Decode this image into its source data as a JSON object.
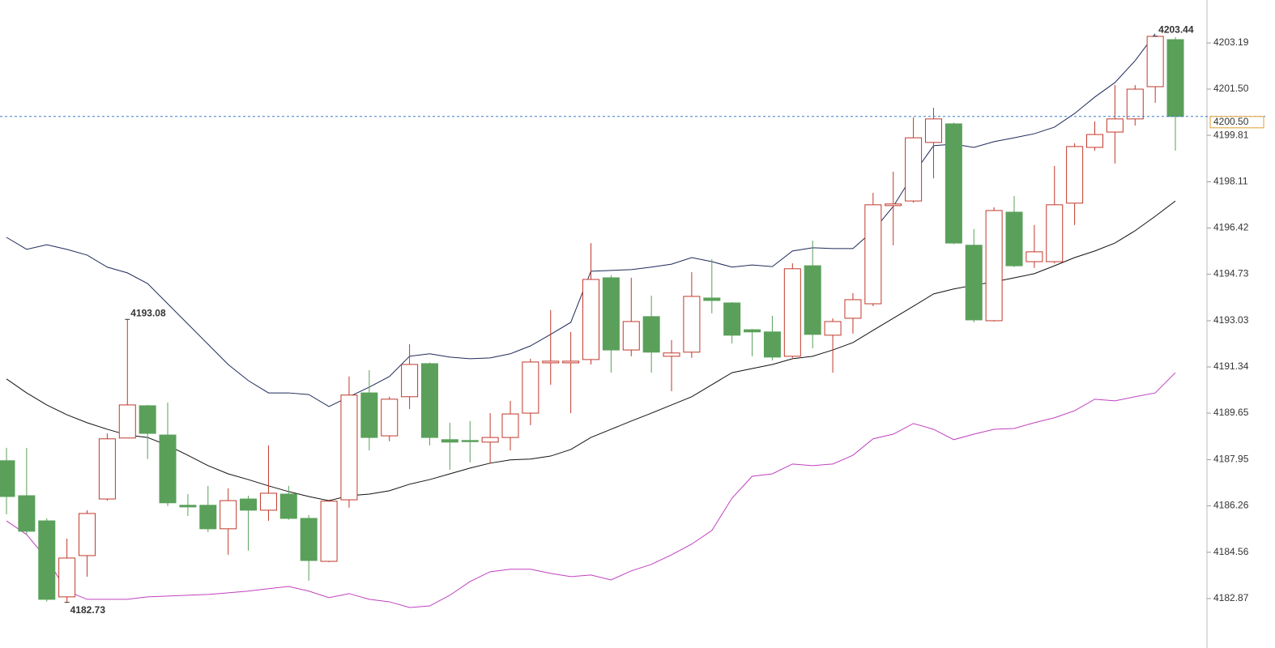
{
  "chart_data": {
    "type": "candlestick",
    "up_color": "#c0392b",
    "down_color": "#5aa05a",
    "open": [
      4187.91,
      4186.63,
      4185.71,
      4182.93,
      4184.44,
      4186.51,
      4188.74,
      4189.92,
      4188.85,
      4186.28,
      4186.28,
      4185.42,
      4186.51,
      4186.1,
      4186.69,
      4185.8,
      4184.23,
      4186.48,
      4190.39,
      4188.82,
      4190.25,
      4191.46,
      4188.68,
      4188.65,
      4188.59,
      4188.76,
      4189.65,
      4191.49,
      4191.49,
      4191.61,
      4194.6,
      4191.96,
      4193.18,
      4191.73,
      4191.88,
      4193.86,
      4193.68,
      4192.7,
      4192.62,
      4191.73,
      4195.04,
      4192.5,
      4193.12,
      4193.65,
      4197.24,
      4197.41,
      4199.55,
      4200.23,
      4195.79,
      4193.03,
      4197.0,
      4195.19,
      4195.19,
      4197.33,
      4199.37,
      4199.93,
      4200.41,
      4201.59,
      4203.31
    ],
    "high": [
      4188.38,
      4188.38,
      4185.8,
      4185.06,
      4186.1,
      4188.91,
      4193.08,
      4189.95,
      4190.04,
      4186.69,
      4186.99,
      4186.9,
      4186.63,
      4188.47,
      4186.99,
      4185.92,
      4186.48,
      4190.99,
      4191.22,
      4190.25,
      4192.17,
      4191.5,
      4189.3,
      4189.36,
      4189.65,
      4190.1,
      4191.64,
      4193.42,
      4192.62,
      4195.87,
      4194.69,
      4194.6,
      4193.95,
      4192.32,
      4194.81,
      4195.28,
      4193.71,
      4192.73,
      4193.21,
      4195.13,
      4195.96,
      4193.12,
      4194.04,
      4197.71,
      4198.48,
      4200.47,
      4200.82,
      4200.27,
      4196.38,
      4197.18,
      4197.59,
      4196.53,
      4198.69,
      4199.52,
      4200.32,
      4201.65,
      4201.65,
      4203.44,
      4203.4
    ],
    "low": [
      4185.95,
      4185.21,
      4182.76,
      4182.73,
      4183.67,
      4186.45,
      4188.74,
      4187.97,
      4186.25,
      4185.89,
      4185.3,
      4184.47,
      4184.62,
      4185.71,
      4185.75,
      4183.52,
      4184.2,
      4186.19,
      4188.29,
      4188.62,
      4189.8,
      4188.47,
      4187.58,
      4187.85,
      4187.82,
      4188.29,
      4189.21,
      4190.69,
      4189.65,
      4191.43,
      4191.13,
      4191.73,
      4191.13,
      4190.45,
      4191.67,
      4193.3,
      4192.2,
      4191.73,
      4191.58,
      4191.67,
      4192.02,
      4191.13,
      4192.56,
      4193.56,
      4195.79,
      4197.35,
      4198.24,
      4195.83,
      4192.97,
      4193.0,
      4194.99,
      4194.96,
      4195.13,
      4196.53,
      4199.25,
      4198.78,
      4200.17,
      4201.0,
      4199.25
    ],
    "close": [
      4186.6,
      4185.33,
      4182.84,
      4184.35,
      4185.98,
      4188.71,
      4189.95,
      4188.91,
      4186.37,
      4186.22,
      4185.42,
      4186.45,
      4186.1,
      4186.72,
      4185.8,
      4184.26,
      4186.43,
      4190.31,
      4188.76,
      4190.16,
      4191.43,
      4188.76,
      4188.59,
      4188.62,
      4188.76,
      4189.62,
      4191.52,
      4191.55,
      4191.55,
      4194.54,
      4191.96,
      4193.0,
      4191.88,
      4191.85,
      4193.92,
      4193.77,
      4192.5,
      4192.62,
      4191.7,
      4194.93,
      4192.53,
      4193.0,
      4193.8,
      4197.27,
      4197.3,
      4199.72,
      4200.41,
      4195.87,
      4193.06,
      4197.06,
      4195.04,
      4195.55,
      4197.27,
      4199.4,
      4199.84,
      4200.41,
      4201.5,
      4203.43,
      4200.5
    ],
    "lines": [
      {
        "color": "#1f2a5a",
        "values": [
          4196.08,
          4195.64,
          4195.81,
          4195.64,
          4195.43,
          4194.99,
          4194.78,
          4194.39,
          4193.65,
          4192.91,
          4192.17,
          4191.43,
          4190.84,
          4190.39,
          4190.39,
          4190.33,
          4189.89,
          4190.25,
          4190.6,
          4190.99,
          4191.73,
          4191.82,
          4191.7,
          4191.64,
          4191.67,
          4191.82,
          4192.11,
          4192.53,
          4192.97,
          4194.84,
          4194.87,
          4194.9,
          4194.99,
          4195.1,
          4195.34,
          4195.19,
          4194.99,
          4195.07,
          4195.01,
          4195.58,
          4195.7,
          4195.67,
          4195.67,
          4196.32,
          4197.21,
          4198.39,
          4199.43,
          4199.49,
          4199.37,
          4199.58,
          4199.72,
          4199.87,
          4200.11,
          4200.61,
          4201.21,
          4201.74,
          4202.54,
          4203.52,
          null
        ]
      },
      {
        "color": "#111111",
        "values": [
          4190.9,
          4190.39,
          4189.95,
          4189.59,
          4189.3,
          4189.06,
          4188.85,
          4188.76,
          4188.47,
          4188.11,
          4187.73,
          4187.43,
          4187.22,
          4186.99,
          4186.78,
          4186.6,
          4186.45,
          4186.63,
          4186.69,
          4186.81,
          4187.05,
          4187.22,
          4187.43,
          4187.64,
          4187.82,
          4187.94,
          4187.97,
          4188.08,
          4188.32,
          4188.76,
          4189.06,
          4189.36,
          4189.65,
          4189.95,
          4190.25,
          4190.69,
          4191.13,
          4191.28,
          4191.43,
          4191.64,
          4191.73,
          4191.96,
          4192.23,
          4192.68,
          4193.12,
          4193.56,
          4194.01,
          4194.19,
          4194.33,
          4194.45,
          4194.6,
          4194.75,
          4195.04,
          4195.34,
          4195.58,
          4195.87,
          4196.32,
          4196.85,
          4197.41
        ]
      },
      {
        "color": "#c040c0",
        "values": [
          4185.71,
          4185.21,
          4184.32,
          4183.14,
          4182.84,
          4182.84,
          4182.84,
          4182.93,
          4182.96,
          4182.99,
          4183.02,
          4183.08,
          4183.14,
          4183.23,
          4183.31,
          4183.14,
          4182.9,
          4183.05,
          4182.84,
          4182.75,
          4182.54,
          4182.6,
          4182.99,
          4183.49,
          4183.85,
          4183.94,
          4183.94,
          4183.79,
          4183.67,
          4183.73,
          4183.55,
          4183.88,
          4184.12,
          4184.47,
          4184.86,
          4185.36,
          4186.54,
          4187.34,
          4187.43,
          4187.79,
          4187.73,
          4187.79,
          4188.11,
          4188.71,
          4188.88,
          4189.27,
          4189.06,
          4188.68,
          4188.88,
          4189.06,
          4189.09,
          4189.3,
          4189.48,
          4189.74,
          4190.16,
          4190.1,
          4190.25,
          4190.39,
          4191.13
        ]
      }
    ],
    "annotations": [
      {
        "value": 4193.08,
        "color": "#c0392b"
      },
      {
        "value": 4182.73,
        "color": "#5aa05a"
      },
      {
        "value": 4203.44,
        "color": "#c0392b"
      }
    ],
    "last_price": {
      "value": 4200.5,
      "label": "4200.50"
    },
    "ylim": [
      4181.06,
      4204.76
    ],
    "yticks": [
      4203.19,
      {
        "value": 4201.5,
        "label": "4201.50"
      },
      4199.81,
      4198.11,
      4196.42,
      4194.73,
      4193.03,
      4191.34,
      4189.65,
      4187.95,
      4186.26,
      4184.56,
      4182.87
    ]
  }
}
